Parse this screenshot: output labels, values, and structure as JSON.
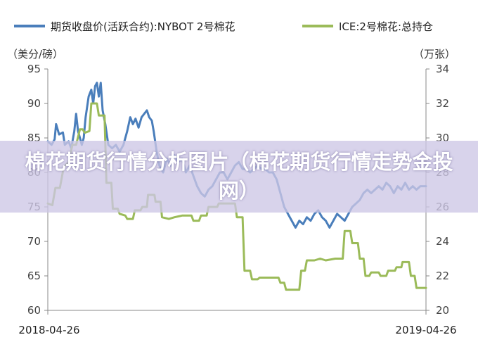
{
  "chart_data": {
    "type": "line",
    "x_start": "2018-04-26",
    "x_end": "2019-04-26",
    "x_tick_labels": [
      "2018-04-26",
      "2019-04-26"
    ],
    "left_axis": {
      "unit_label": "（美分/磅）",
      "ylim": [
        60,
        95
      ],
      "ticks": [
        60,
        65,
        70,
        75,
        80,
        85,
        90,
        95
      ]
    },
    "right_axis": {
      "unit_label": "（万张）",
      "ylim": [
        20,
        34
      ],
      "ticks": [
        20,
        22,
        24,
        26,
        28,
        30,
        32,
        34
      ]
    },
    "series": [
      {
        "name": "期货收盘价(活跃合约):NYBOT 2号棉花",
        "axis": "left",
        "color": "#4a7ebb",
        "points": [
          [
            0.0,
            84.5
          ],
          [
            0.01,
            84.0
          ],
          [
            0.018,
            84.8
          ],
          [
            0.022,
            87.0
          ],
          [
            0.03,
            85.5
          ],
          [
            0.04,
            85.8
          ],
          [
            0.045,
            84.0
          ],
          [
            0.055,
            84.5
          ],
          [
            0.062,
            83.5
          ],
          [
            0.07,
            86.0
          ],
          [
            0.075,
            88.5
          ],
          [
            0.08,
            86.0
          ],
          [
            0.09,
            84.0
          ],
          [
            0.095,
            85.0
          ],
          [
            0.1,
            88.0
          ],
          [
            0.108,
            91.0
          ],
          [
            0.115,
            92.0
          ],
          [
            0.12,
            90.0
          ],
          [
            0.125,
            92.5
          ],
          [
            0.13,
            93.0
          ],
          [
            0.135,
            91.0
          ],
          [
            0.14,
            93.0
          ],
          [
            0.145,
            89.0
          ],
          [
            0.152,
            87.0
          ],
          [
            0.16,
            84.0
          ],
          [
            0.17,
            83.5
          ],
          [
            0.18,
            84.0
          ],
          [
            0.19,
            83.0
          ],
          [
            0.2,
            84.0
          ],
          [
            0.21,
            86.0
          ],
          [
            0.218,
            88.0
          ],
          [
            0.225,
            87.0
          ],
          [
            0.232,
            87.8
          ],
          [
            0.24,
            86.5
          ],
          [
            0.248,
            88.0
          ],
          [
            0.255,
            88.5
          ],
          [
            0.262,
            89.0
          ],
          [
            0.268,
            88.0
          ],
          [
            0.275,
            87.5
          ],
          [
            0.28,
            86.0
          ],
          [
            0.288,
            83.0
          ],
          [
            0.295,
            81.0
          ],
          [
            0.305,
            80.0
          ],
          [
            0.315,
            82.0
          ],
          [
            0.325,
            81.0
          ],
          [
            0.335,
            82.5
          ],
          [
            0.345,
            81.5
          ],
          [
            0.355,
            82.0
          ],
          [
            0.365,
            80.0
          ],
          [
            0.375,
            81.0
          ],
          [
            0.385,
            79.5
          ],
          [
            0.395,
            78.0
          ],
          [
            0.405,
            77.0
          ],
          [
            0.415,
            76.5
          ],
          [
            0.425,
            77.5
          ],
          [
            0.435,
            78.0
          ],
          [
            0.445,
            79.0
          ],
          [
            0.455,
            80.0
          ],
          [
            0.465,
            80.0
          ],
          [
            0.475,
            79.0
          ],
          [
            0.485,
            80.0
          ],
          [
            0.495,
            81.0
          ],
          [
            0.505,
            81.5
          ],
          [
            0.515,
            80.5
          ],
          [
            0.525,
            80.5
          ],
          [
            0.535,
            80.0
          ],
          [
            0.545,
            80.5
          ],
          [
            0.555,
            81.0
          ],
          [
            0.565,
            80.5
          ],
          [
            0.575,
            80.5
          ],
          [
            0.585,
            80.0
          ],
          [
            0.595,
            80.0
          ],
          [
            0.605,
            79.0
          ],
          [
            0.615,
            77.0
          ],
          [
            0.625,
            75.0
          ],
          [
            0.635,
            74.0
          ],
          [
            0.645,
            73.0
          ],
          [
            0.655,
            72.0
          ],
          [
            0.665,
            73.0
          ],
          [
            0.675,
            72.5
          ],
          [
            0.685,
            73.5
          ],
          [
            0.695,
            73.0
          ],
          [
            0.705,
            74.0
          ],
          [
            0.715,
            74.5
          ],
          [
            0.725,
            73.5
          ],
          [
            0.735,
            73.0
          ],
          [
            0.745,
            72.0
          ],
          [
            0.755,
            73.0
          ],
          [
            0.765,
            74.0
          ],
          [
            0.775,
            73.5
          ],
          [
            0.785,
            73.0
          ],
          [
            0.795,
            74.0
          ],
          [
            0.805,
            75.0
          ],
          [
            0.815,
            75.5
          ],
          [
            0.825,
            76.0
          ],
          [
            0.835,
            77.0
          ],
          [
            0.845,
            77.5
          ],
          [
            0.855,
            77.0
          ],
          [
            0.865,
            77.5
          ],
          [
            0.875,
            78.0
          ],
          [
            0.885,
            77.5
          ],
          [
            0.895,
            78.5
          ],
          [
            0.905,
            78.0
          ],
          [
            0.915,
            77.0
          ],
          [
            0.925,
            78.0
          ],
          [
            0.935,
            77.5
          ],
          [
            0.945,
            78.5
          ],
          [
            0.955,
            77.5
          ],
          [
            0.965,
            78.0
          ],
          [
            0.975,
            77.5
          ],
          [
            0.985,
            78.0
          ],
          [
            1.0,
            78.0
          ]
        ]
      },
      {
        "name": "ICE:2号棉花:总持仓",
        "axis": "right",
        "color": "#9bbb59",
        "points": [
          [
            0.0,
            26.2
          ],
          [
            0.012,
            26.1
          ],
          [
            0.02,
            27.1
          ],
          [
            0.032,
            27.1
          ],
          [
            0.042,
            28.3
          ],
          [
            0.055,
            28.6
          ],
          [
            0.065,
            29.6
          ],
          [
            0.075,
            29.6
          ],
          [
            0.085,
            30.5
          ],
          [
            0.092,
            30.5
          ],
          [
            0.098,
            30.3
          ],
          [
            0.11,
            30.4
          ],
          [
            0.115,
            32.0
          ],
          [
            0.13,
            32.0
          ],
          [
            0.135,
            31.3
          ],
          [
            0.15,
            31.3
          ],
          [
            0.155,
            27.4
          ],
          [
            0.168,
            27.4
          ],
          [
            0.172,
            25.9
          ],
          [
            0.185,
            25.9
          ],
          [
            0.19,
            25.6
          ],
          [
            0.205,
            25.5
          ],
          [
            0.21,
            25.3
          ],
          [
            0.225,
            25.3
          ],
          [
            0.23,
            25.8
          ],
          [
            0.245,
            25.8
          ],
          [
            0.25,
            26.0
          ],
          [
            0.262,
            26.0
          ],
          [
            0.265,
            26.7
          ],
          [
            0.282,
            26.7
          ],
          [
            0.285,
            26.3
          ],
          [
            0.298,
            26.3
          ],
          [
            0.302,
            25.4
          ],
          [
            0.32,
            25.3
          ],
          [
            0.335,
            25.4
          ],
          [
            0.355,
            25.5
          ],
          [
            0.38,
            25.5
          ],
          [
            0.385,
            25.2
          ],
          [
            0.4,
            25.2
          ],
          [
            0.405,
            25.5
          ],
          [
            0.42,
            25.5
          ],
          [
            0.425,
            26.0
          ],
          [
            0.448,
            26.0
          ],
          [
            0.452,
            26.2
          ],
          [
            0.495,
            26.2
          ],
          [
            0.5,
            25.4
          ],
          [
            0.515,
            25.4
          ],
          [
            0.52,
            22.3
          ],
          [
            0.535,
            22.3
          ],
          [
            0.54,
            21.8
          ],
          [
            0.555,
            21.8
          ],
          [
            0.56,
            21.9
          ],
          [
            0.61,
            21.9
          ],
          [
            0.615,
            21.6
          ],
          [
            0.625,
            21.6
          ],
          [
            0.63,
            21.2
          ],
          [
            0.665,
            21.2
          ],
          [
            0.67,
            22.3
          ],
          [
            0.68,
            22.3
          ],
          [
            0.685,
            22.9
          ],
          [
            0.7,
            22.9
          ],
          [
            0.705,
            22.9
          ],
          [
            0.72,
            23.0
          ],
          [
            0.735,
            22.9
          ],
          [
            0.76,
            23.0
          ],
          [
            0.78,
            23.0
          ],
          [
            0.785,
            24.6
          ],
          [
            0.8,
            24.6
          ],
          [
            0.805,
            23.9
          ],
          [
            0.82,
            23.9
          ],
          [
            0.825,
            23.0
          ],
          [
            0.835,
            23.0
          ],
          [
            0.84,
            22.0
          ],
          [
            0.85,
            22.0
          ],
          [
            0.855,
            22.2
          ],
          [
            0.875,
            22.2
          ],
          [
            0.88,
            22.0
          ],
          [
            0.895,
            22.0
          ],
          [
            0.9,
            22.3
          ],
          [
            0.918,
            22.3
          ],
          [
            0.922,
            22.5
          ],
          [
            0.935,
            22.5
          ],
          [
            0.938,
            22.8
          ],
          [
            0.955,
            22.8
          ],
          [
            0.96,
            22.0
          ],
          [
            0.97,
            22.0
          ],
          [
            0.975,
            21.3
          ],
          [
            1.0,
            21.3
          ]
        ]
      }
    ]
  },
  "overlay": {
    "title": "棉花期货行情分析图片（棉花期货行情走势金投网）"
  }
}
